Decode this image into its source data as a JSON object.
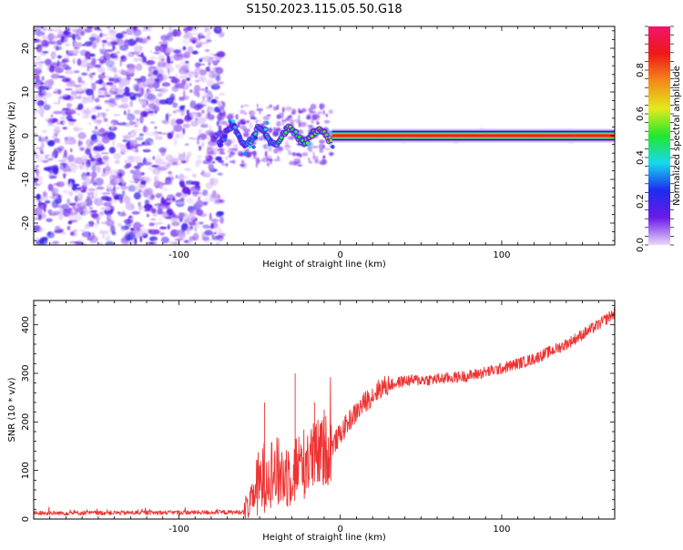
{
  "figure": {
    "title": "S150.2023.115.05.50.G18"
  },
  "chart_data": [
    {
      "type": "heatmap",
      "xlabel": "Height of straight line (km)",
      "ylabel": "Frequency (Hz)",
      "xlim": [
        -190,
        170
      ],
      "ylim": [
        -25,
        25
      ],
      "xticks": [
        -100,
        0,
        100
      ],
      "yticks": [
        -20,
        -10,
        0,
        10,
        20
      ],
      "colorbar": {
        "label": "Normalized spectral amplitude",
        "range": [
          0.0,
          1.0
        ],
        "ticks": [
          0.0,
          0.2,
          0.4,
          0.6,
          0.8
        ],
        "tick_labels": [
          "0.0",
          "0.2",
          "0.4",
          "0.6",
          "0.8"
        ],
        "colors": [
          "#ecd8fc",
          "#6a1ae8",
          "#1c2cf0",
          "#17d9ee",
          "#21e82c",
          "#e4ea1c",
          "#f48a1a",
          "#ee1818",
          "#f0156e"
        ]
      },
      "features": {
        "noise_region_x": [
          -190,
          -73
        ],
        "transition_region_x": [
          -75,
          -5
        ],
        "signal_line": {
          "x_start": -5,
          "x_end": 170,
          "frequency": 0,
          "amplitude": 0.95
        }
      }
    },
    {
      "type": "line",
      "xlabel": "Height of straight line (km)",
      "ylabel": "SNR (10 * v/v)",
      "xlim": [
        -190,
        170
      ],
      "ylim": [
        0,
        450
      ],
      "xticks": [
        -100,
        0,
        100
      ],
      "yticks": [
        0,
        100,
        200,
        300,
        400
      ],
      "line_color": "#ee3333",
      "series": [
        {
          "trend_x": [
            -190,
            -60,
            -55,
            -45,
            -35,
            -25,
            -15,
            -5,
            5,
            15,
            25,
            40,
            60,
            80,
            100,
            120,
            140,
            160,
            170
          ],
          "trend_y": [
            12,
            14,
            40,
            100,
            90,
            110,
            130,
            150,
            200,
            240,
            270,
            285,
            288,
            295,
            310,
            330,
            360,
            400,
            425
          ]
        }
      ]
    }
  ]
}
